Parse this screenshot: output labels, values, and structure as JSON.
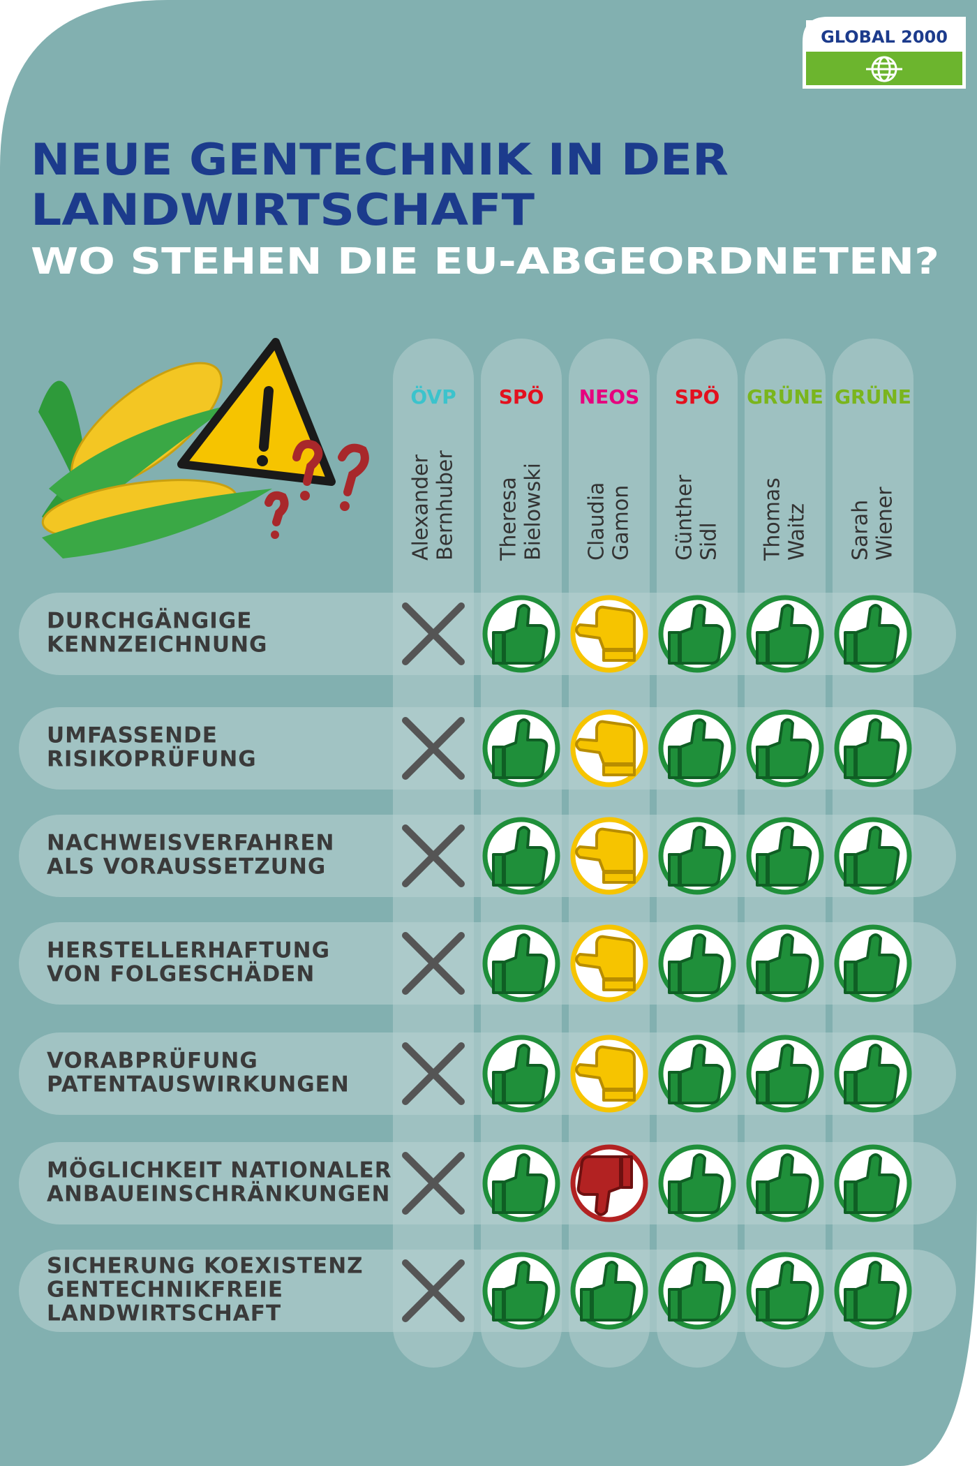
{
  "header": {
    "logo": "GLOBAL 2000",
    "title_lines": [
      "NEUE GENTECHNIK IN DER",
      "LANDWIRTSCHAFT"
    ],
    "subtitle": "WO STEHEN DIE EU-ABGEORDNETEN?"
  },
  "table": {
    "columns": [
      {
        "party": "ÖVP",
        "party_color": "#3cc3cc",
        "name_lines": [
          "Alexander",
          "Bernhuber"
        ]
      },
      {
        "party": "SPÖ",
        "party_color": "#e3101e",
        "name_lines": [
          "Theresa",
          "Bielowski"
        ]
      },
      {
        "party": "NEOS",
        "party_color": "#e6007e",
        "name_lines": [
          "Claudia",
          "Gamon"
        ]
      },
      {
        "party": "SPÖ",
        "party_color": "#e3101e",
        "name_lines": [
          "Günther",
          "Sidl"
        ]
      },
      {
        "party": "GRÜNE",
        "party_color": "#7ab51d",
        "name_lines": [
          "Thomas",
          "Waitz"
        ]
      },
      {
        "party": "GRÜNE",
        "party_color": "#7ab51d",
        "name_lines": [
          "Sarah",
          "Wiener"
        ]
      }
    ],
    "rows": [
      {
        "label_lines": [
          "DURCHGÄNGIGE",
          "KENNZEICHNUNG"
        ],
        "ratings": [
          "x",
          "up",
          "side",
          "up",
          "up",
          "up"
        ]
      },
      {
        "label_lines": [
          "UMFASSENDE",
          "RISIKOPRÜFUNG"
        ],
        "ratings": [
          "x",
          "up",
          "side",
          "up",
          "up",
          "up"
        ]
      },
      {
        "label_lines": [
          "NACHWEISVERFAHREN",
          "ALS VORAUSSETZUNG"
        ],
        "ratings": [
          "x",
          "up",
          "side",
          "up",
          "up",
          "up"
        ]
      },
      {
        "label_lines": [
          "HERSTELLERHAFTUNG",
          "VON FOLGESCHÄDEN"
        ],
        "ratings": [
          "x",
          "up",
          "side",
          "up",
          "up",
          "up"
        ]
      },
      {
        "label_lines": [
          "VORABPRÜFUNG",
          "PATENTAUSWIRKUNGEN"
        ],
        "ratings": [
          "x",
          "up",
          "side",
          "up",
          "up",
          "up"
        ]
      },
      {
        "label_lines": [
          "MÖGLICHKEIT NATIONALER",
          "ANBAUEINSCHRÄNKUNGEN"
        ],
        "ratings": [
          "x",
          "up",
          "down",
          "up",
          "up",
          "up"
        ]
      },
      {
        "label_lines": [
          "SICHERUNG KOEXISTENZ",
          "GENTECHNIKFREIE",
          "LANDWIRTSCHAFT"
        ],
        "ratings": [
          "x",
          "up",
          "up",
          "up",
          "up",
          "up"
        ]
      }
    ]
  }
}
